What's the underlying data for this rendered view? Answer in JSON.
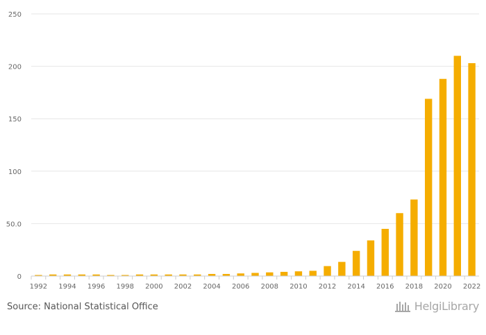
{
  "chart_data": {
    "type": "bar",
    "categories": [
      "1992",
      "1993",
      "1994",
      "1995",
      "1996",
      "1997",
      "1998",
      "1999",
      "2000",
      "2001",
      "2002",
      "2003",
      "2004",
      "2005",
      "2006",
      "2007",
      "2008",
      "2009",
      "2010",
      "2011",
      "2012",
      "2013",
      "2014",
      "2015",
      "2016",
      "2017",
      "2018",
      "2019",
      "2020",
      "2021",
      "2022"
    ],
    "values": [
      1,
      1.5,
      1.5,
      1.5,
      1.5,
      1,
      1,
      1.5,
      1.5,
      1.5,
      1.5,
      1.5,
      2,
      2,
      2.5,
      3,
      3.5,
      4,
      4.5,
      5,
      9.5,
      13.5,
      24,
      34,
      45,
      60,
      73,
      169,
      188,
      210,
      203
    ],
    "x_tick_labels": [
      "1992",
      "1994",
      "1996",
      "1998",
      "2000",
      "2002",
      "2004",
      "2006",
      "2008",
      "2010",
      "2012",
      "2014",
      "2016",
      "2018",
      "2020",
      "2022"
    ],
    "y_ticks": [
      0,
      50,
      100,
      150,
      200,
      250
    ],
    "y_tick_labels": [
      "0",
      "50.0",
      "100",
      "150",
      "200",
      "250"
    ],
    "ylim": [
      0,
      250
    ],
    "grid": true,
    "bar_color": "#f5ad00"
  },
  "footer": {
    "source": "Source: National Statistical Office",
    "brand": "HelgiLibrary"
  }
}
